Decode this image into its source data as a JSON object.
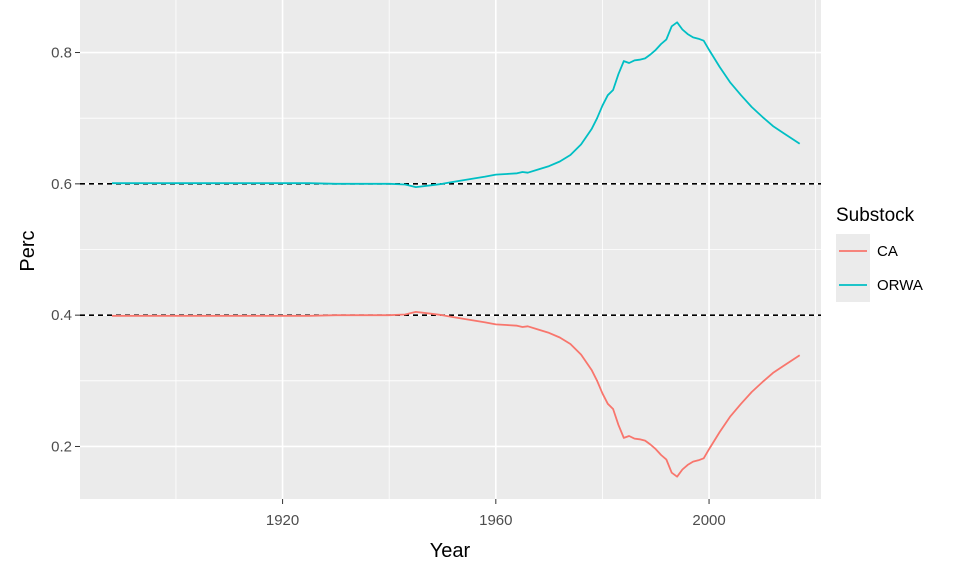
{
  "chart_data": {
    "type": "line",
    "title": "",
    "xlabel": "Year",
    "ylabel": "Perc",
    "xlim": [
      1882,
      2021
    ],
    "ylim": [
      0.12,
      0.88
    ],
    "x_ticks": [
      1920,
      1960,
      2000
    ],
    "x_minor_ticks": [
      1900,
      1940,
      1980,
      2020
    ],
    "y_ticks": [
      0.2,
      0.4,
      0.6,
      0.8
    ],
    "y_minor_ticks": [
      0.3,
      0.5,
      0.7
    ],
    "x_tick_labels": [
      "1920",
      "1960",
      "2000"
    ],
    "y_tick_labels": [
      "0.2",
      "0.4",
      "0.6",
      "0.8"
    ],
    "grid": true,
    "legend_position": "right",
    "legend": {
      "title": "Substock"
    },
    "reference_lines": [
      {
        "y": 0.6,
        "style": "dashed"
      },
      {
        "y": 0.4,
        "style": "dashed"
      }
    ],
    "colors": {
      "CA": "#F8766D",
      "ORWA": "#00BFC4",
      "panel": "#EBEBEB",
      "grid": "#FFFFFF",
      "ref_line": "#000000"
    },
    "series": [
      {
        "name": "CA",
        "color": "#F8766D",
        "x": [
          1888,
          1895,
          1900,
          1910,
          1920,
          1925,
          1930,
          1935,
          1940,
          1943,
          1945,
          1946,
          1948,
          1950,
          1952,
          1955,
          1958,
          1960,
          1962,
          1964,
          1965,
          1966,
          1968,
          1970,
          1972,
          1974,
          1976,
          1978,
          1979,
          1980,
          1981,
          1982,
          1983,
          1984,
          1985,
          1986,
          1987,
          1988,
          1989,
          1990,
          1991,
          1992,
          1993,
          1994,
          1995,
          1996,
          1997,
          1998,
          1999,
          2000,
          2002,
          2004,
          2006,
          2008,
          2010,
          2012,
          2014,
          2017
        ],
        "y": [
          0.399,
          0.399,
          0.399,
          0.399,
          0.399,
          0.399,
          0.4,
          0.4,
          0.4,
          0.401,
          0.405,
          0.404,
          0.402,
          0.4,
          0.397,
          0.393,
          0.389,
          0.386,
          0.385,
          0.384,
          0.382,
          0.383,
          0.378,
          0.373,
          0.366,
          0.356,
          0.34,
          0.316,
          0.3,
          0.281,
          0.265,
          0.257,
          0.233,
          0.213,
          0.216,
          0.212,
          0.211,
          0.209,
          0.203,
          0.196,
          0.187,
          0.18,
          0.16,
          0.154,
          0.165,
          0.172,
          0.177,
          0.179,
          0.182,
          0.196,
          0.222,
          0.246,
          0.265,
          0.283,
          0.298,
          0.312,
          0.323,
          0.339
        ]
      },
      {
        "name": "ORWA",
        "color": "#00BFC4",
        "x": [
          1888,
          1895,
          1900,
          1910,
          1920,
          1925,
          1930,
          1935,
          1940,
          1943,
          1945,
          1946,
          1948,
          1950,
          1952,
          1955,
          1958,
          1960,
          1962,
          1964,
          1965,
          1966,
          1968,
          1970,
          1972,
          1974,
          1976,
          1978,
          1979,
          1980,
          1981,
          1982,
          1983,
          1984,
          1985,
          1986,
          1987,
          1988,
          1989,
          1990,
          1991,
          1992,
          1993,
          1994,
          1995,
          1996,
          1997,
          1998,
          1999,
          2000,
          2002,
          2004,
          2006,
          2008,
          2010,
          2012,
          2014,
          2017
        ],
        "y": [
          0.601,
          0.601,
          0.601,
          0.601,
          0.601,
          0.601,
          0.6,
          0.6,
          0.6,
          0.599,
          0.595,
          0.596,
          0.598,
          0.6,
          0.603,
          0.607,
          0.611,
          0.614,
          0.615,
          0.616,
          0.618,
          0.617,
          0.622,
          0.627,
          0.634,
          0.644,
          0.66,
          0.684,
          0.7,
          0.719,
          0.735,
          0.743,
          0.767,
          0.787,
          0.784,
          0.788,
          0.789,
          0.791,
          0.797,
          0.804,
          0.813,
          0.82,
          0.84,
          0.846,
          0.835,
          0.828,
          0.823,
          0.821,
          0.818,
          0.804,
          0.778,
          0.754,
          0.735,
          0.717,
          0.702,
          0.688,
          0.677,
          0.661
        ]
      }
    ]
  }
}
